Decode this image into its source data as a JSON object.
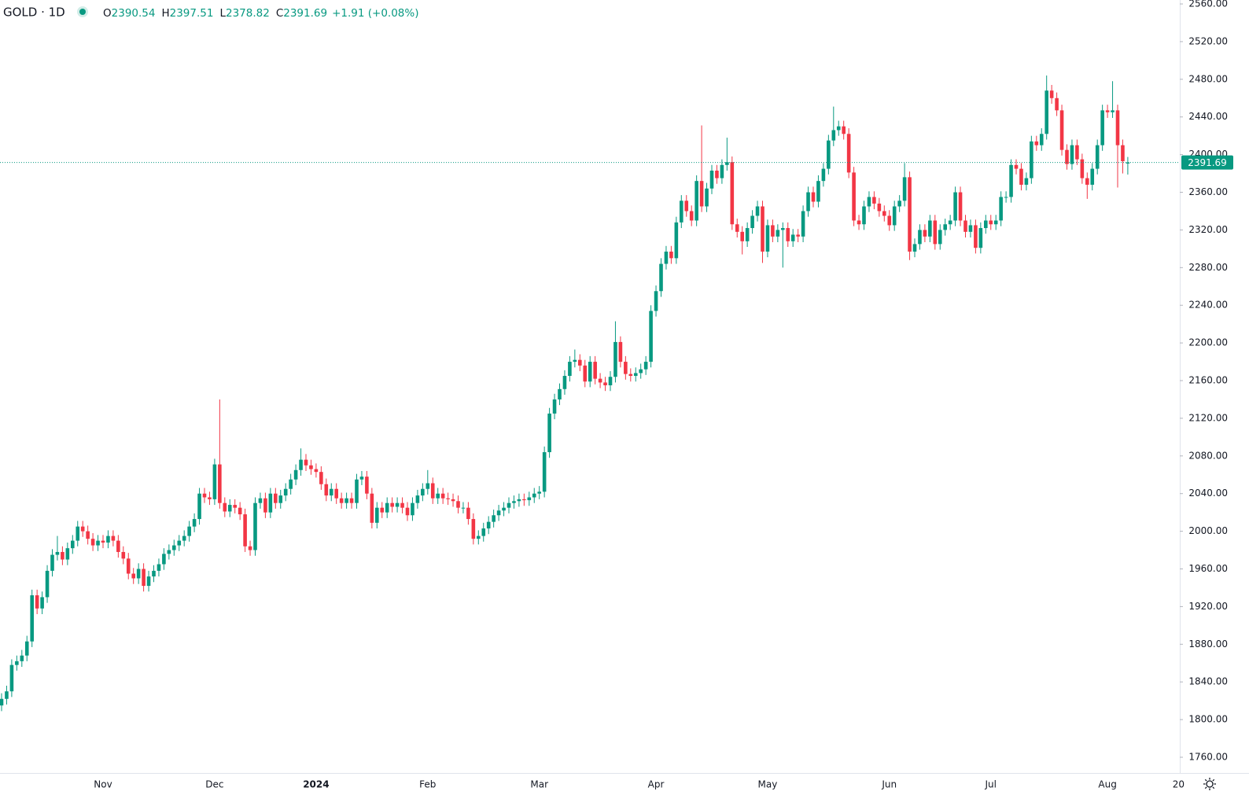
{
  "chart_data": {
    "type": "candlestick",
    "title": "GOLD · 1D",
    "ohlc_labels": [
      "O",
      "H",
      "L",
      "C"
    ],
    "change": "+1.91 (+0.08%)",
    "up_color": "#089981",
    "down_color": "#f23645",
    "last_price_line": true,
    "grid": false,
    "ylim": [
      1743.3,
      2564.2
    ],
    "yticks": [
      {
        "value": 1760,
        "label": "1760.00"
      },
      {
        "value": 1800,
        "label": "1800.00"
      },
      {
        "value": 1840,
        "label": "1840.00"
      },
      {
        "value": 1880,
        "label": "1880.00"
      },
      {
        "value": 1920,
        "label": "1920.00"
      },
      {
        "value": 1960,
        "label": "1960.00"
      },
      {
        "value": 2000,
        "label": "2000.00"
      },
      {
        "value": 2040,
        "label": "2040.00"
      },
      {
        "value": 2080,
        "label": "2080.00"
      },
      {
        "value": 2120,
        "label": "2120.00"
      },
      {
        "value": 2160,
        "label": "2160.00"
      },
      {
        "value": 2200,
        "label": "2200.00"
      },
      {
        "value": 2240,
        "label": "2240.00"
      },
      {
        "value": 2280,
        "label": "2280.00"
      },
      {
        "value": 2320,
        "label": "2320.00"
      },
      {
        "value": 2360,
        "label": "2360.00"
      },
      {
        "value": 2400,
        "label": "2400.00"
      },
      {
        "value": 2440,
        "label": "2440.00"
      },
      {
        "value": 2480,
        "label": "2480.00"
      },
      {
        "value": 2520,
        "label": "2520.00"
      },
      {
        "value": 2560,
        "label": "2560.00"
      }
    ],
    "categories": [
      null,
      null,
      null,
      null,
      null,
      null,
      null,
      null,
      null,
      null,
      null,
      null,
      null,
      null,
      null,
      null,
      null,
      null,
      null,
      null,
      "Nov",
      null,
      null,
      null,
      null,
      null,
      null,
      null,
      null,
      null,
      null,
      null,
      null,
      null,
      null,
      null,
      null,
      null,
      null,
      null,
      null,
      null,
      "Dec",
      null,
      null,
      null,
      null,
      null,
      null,
      null,
      null,
      null,
      null,
      null,
      null,
      null,
      null,
      null,
      null,
      null,
      null,
      null,
      "2024",
      null,
      null,
      null,
      null,
      null,
      null,
      null,
      null,
      null,
      null,
      null,
      null,
      null,
      null,
      null,
      null,
      null,
      null,
      null,
      null,
      null,
      "Feb",
      null,
      null,
      null,
      null,
      null,
      null,
      null,
      null,
      null,
      null,
      null,
      null,
      null,
      null,
      null,
      null,
      null,
      null,
      null,
      null,
      null,
      "Mar",
      null,
      null,
      null,
      null,
      null,
      null,
      null,
      null,
      null,
      null,
      null,
      null,
      null,
      null,
      null,
      null,
      null,
      null,
      null,
      null,
      null,
      null,
      "Apr",
      null,
      null,
      null,
      null,
      null,
      null,
      null,
      null,
      null,
      null,
      null,
      null,
      null,
      null,
      null,
      null,
      null,
      null,
      null,
      null,
      null,
      "May",
      null,
      null,
      null,
      null,
      null,
      null,
      null,
      null,
      null,
      null,
      null,
      null,
      null,
      null,
      null,
      null,
      null,
      null,
      null,
      null,
      null,
      null,
      null,
      "Jun",
      null,
      null,
      null,
      null,
      null,
      null,
      null,
      null,
      null,
      null,
      null,
      null,
      null,
      null,
      null,
      null,
      null,
      null,
      null,
      "Jul",
      null,
      null,
      null,
      null,
      null,
      null,
      null,
      null,
      null,
      null,
      null,
      null,
      null,
      null,
      null,
      null,
      null,
      null,
      null,
      null,
      null,
      null,
      "Aug",
      null,
      null,
      null,
      null,
      null,
      null,
      null,
      null,
      null,
      null,
      null,
      null,
      null,
      "20"
    ],
    "open": [
      1815,
      1822,
      1830,
      1858,
      1862,
      1868,
      1883,
      1932,
      1918,
      1930,
      1958,
      1975,
      1978,
      1970,
      1982,
      1990,
      2005,
      2000,
      1992,
      1985,
      1990,
      1988,
      1995,
      1990,
      1978,
      1971,
      1955,
      1950,
      1960,
      1942,
      1952,
      1958,
      1965,
      1976,
      1980,
      1985,
      1990,
      1995,
      2005,
      2013,
      2040,
      2036,
      2034,
      2071,
      2030,
      2021,
      2028,
      2025,
      2018,
      1984,
      1980,
      2030,
      2035,
      2020,
      2040,
      2030,
      2038,
      2045,
      2055,
      2065,
      2076,
      2070,
      2066,
      2063,
      2050,
      2038,
      2045,
      2035,
      2030,
      2035,
      2030,
      2055,
      2058,
      2040,
      2009,
      2025,
      2020,
      2030,
      2026,
      2030,
      2025,
      2017,
      2030,
      2038,
      2045,
      2051,
      2035,
      2040,
      2035,
      2034,
      2032,
      2025,
      2025,
      2013,
      1992,
      1995,
      2003,
      2010,
      2017,
      2022,
      2025,
      2030,
      2032,
      2034,
      2033,
      2036,
      2040,
      2042,
      2084,
      2125,
      2140,
      2151,
      2165,
      2180,
      2182,
      2176,
      2159,
      2180,
      2162,
      2158,
      2155,
      2164,
      2201,
      2180,
      2167,
      2165,
      2168,
      2172,
      2180,
      2234,
      2255,
      2284,
      2297,
      2290,
      2328,
      2351,
      2340,
      2330,
      2372,
      2345,
      2364,
      2383,
      2375,
      2389,
      2392,
      2326,
      2318,
      2308,
      2322,
      2335,
      2345,
      2297,
      2325,
      2313,
      2320,
      2322,
      2308,
      2315,
      2313,
      2340,
      2360,
      2350,
      2372,
      2385,
      2415,
      2426,
      2430,
      2422,
      2381,
      2330,
      2326,
      2345,
      2355,
      2348,
      2340,
      2335,
      2325,
      2345,
      2351,
      2376,
      2297,
      2305,
      2320,
      2313,
      2330,
      2305,
      2320,
      2326,
      2330,
      2360,
      2330,
      2318,
      2325,
      2301,
      2322,
      2330,
      2326,
      2330,
      2355,
      2355,
      2389,
      2385,
      2368,
      2375,
      2414,
      2410,
      2422,
      2468,
      2460,
      2447,
      2405,
      2390,
      2410,
      2395,
      2375,
      2368,
      2385,
      2410,
      2447,
      2445,
      2447,
      2410,
      2390.54,
      null,
      null,
      null,
      null,
      null,
      null,
      null,
      null,
      null,
      null
    ],
    "high": [
      1828,
      1836,
      1864,
      1868,
      1874,
      1889,
      1938,
      1938,
      1936,
      1964,
      1981,
      1995,
      1984,
      1988,
      1996,
      2011,
      2011,
      2006,
      1998,
      1996,
      1996,
      2001,
      2001,
      1996,
      1984,
      1977,
      1961,
      1966,
      1966,
      1958,
      1964,
      1971,
      1982,
      1986,
      1991,
      1996,
      2001,
      2011,
      2019,
      2046,
      2046,
      2042,
      2077,
      2140,
      2036,
      2034,
      2034,
      2031,
      2024,
      1990,
      2036,
      2041,
      2041,
      2046,
      2046,
      2044,
      2051,
      2061,
      2071,
      2088,
      2082,
      2076,
      2072,
      2069,
      2056,
      2051,
      2051,
      2041,
      2041,
      2041,
      2061,
      2064,
      2064,
      2046,
      2031,
      2031,
      2036,
      2036,
      2036,
      2036,
      2031,
      2036,
      2044,
      2051,
      2065,
      2057,
      2046,
      2046,
      2041,
      2040,
      2038,
      2031,
      2031,
      2019,
      2001,
      2009,
      2016,
      2023,
      2028,
      2031,
      2036,
      2038,
      2040,
      2040,
      2042,
      2046,
      2048,
      2090,
      2131,
      2146,
      2157,
      2171,
      2186,
      2193,
      2188,
      2182,
      2186,
      2186,
      2168,
      2164,
      2170,
      2223,
      2207,
      2186,
      2173,
      2174,
      2178,
      2186,
      2240,
      2261,
      2290,
      2303,
      2303,
      2334,
      2357,
      2357,
      2346,
      2378,
      2431,
      2370,
      2389,
      2389,
      2395,
      2418,
      2398,
      2332,
      2324,
      2328,
      2341,
      2351,
      2351,
      2331,
      2331,
      2326,
      2328,
      2328,
      2321,
      2321,
      2346,
      2366,
      2366,
      2378,
      2391,
      2421,
      2451,
      2436,
      2436,
      2428,
      2387,
      2336,
      2351,
      2361,
      2361,
      2354,
      2346,
      2341,
      2351,
      2357,
      2391,
      2382,
      2311,
      2326,
      2326,
      2336,
      2336,
      2326,
      2332,
      2336,
      2366,
      2366,
      2336,
      2331,
      2331,
      2328,
      2336,
      2336,
      2336,
      2361,
      2361,
      2395,
      2395,
      2391,
      2381,
      2420,
      2420,
      2428,
      2484,
      2474,
      2466,
      2453,
      2411,
      2416,
      2416,
      2401,
      2381,
      2391,
      2416,
      2453,
      2453,
      2478,
      2453,
      2416,
      2397.51,
      null,
      null,
      null,
      null,
      null,
      null,
      null,
      null,
      null,
      null
    ],
    "low": [
      1809,
      1816,
      1824,
      1852,
      1856,
      1862,
      1877,
      1912,
      1912,
      1924,
      1952,
      1969,
      1964,
      1964,
      1976,
      1984,
      1994,
      1986,
      1979,
      1979,
      1982,
      1982,
      1984,
      1972,
      1965,
      1949,
      1944,
      1944,
      1936,
      1936,
      1946,
      1952,
      1959,
      1970,
      1974,
      1979,
      1984,
      1989,
      1999,
      2007,
      2030,
      2028,
      2028,
      2024,
      2015,
      2015,
      2019,
      2012,
      1978,
      1974,
      1974,
      2024,
      2014,
      2014,
      2024,
      2024,
      2032,
      2039,
      2049,
      2059,
      2064,
      2060,
      2057,
      2044,
      2032,
      2032,
      2029,
      2024,
      2024,
      2024,
      2024,
      2049,
      2034,
      2003,
      2003,
      2014,
      2014,
      2020,
      2020,
      2019,
      2011,
      2011,
      2024,
      2032,
      2039,
      2029,
      2029,
      2029,
      2028,
      2026,
      2019,
      2019,
      2007,
      1986,
      1986,
      1989,
      1997,
      2004,
      2011,
      2016,
      2019,
      2024,
      2026,
      2027,
      2027,
      2030,
      2034,
      2036,
      2078,
      2119,
      2134,
      2145,
      2159,
      2174,
      2170,
      2153,
      2153,
      2156,
      2152,
      2149,
      2149,
      2158,
      2174,
      2161,
      2159,
      2159,
      2162,
      2166,
      2174,
      2228,
      2249,
      2278,
      2284,
      2284,
      2322,
      2334,
      2324,
      2324,
      2339,
      2339,
      2358,
      2369,
      2369,
      2383,
      2320,
      2312,
      2294,
      2302,
      2316,
      2329,
      2285,
      2291,
      2307,
      2307,
      2280,
      2302,
      2302,
      2307,
      2307,
      2334,
      2344,
      2344,
      2366,
      2379,
      2409,
      2420,
      2416,
      2375,
      2324,
      2320,
      2320,
      2339,
      2342,
      2334,
      2329,
      2319,
      2319,
      2339,
      2345,
      2288,
      2291,
      2299,
      2307,
      2307,
      2299,
      2299,
      2314,
      2320,
      2324,
      2324,
      2312,
      2312,
      2295,
      2295,
      2316,
      2320,
      2320,
      2324,
      2349,
      2349,
      2379,
      2362,
      2362,
      2369,
      2404,
      2404,
      2416,
      2454,
      2441,
      2399,
      2384,
      2384,
      2389,
      2369,
      2353,
      2362,
      2379,
      2404,
      2439,
      2439,
      2365,
      2380,
      2378.82,
      null,
      null,
      null,
      null,
      null,
      null,
      null,
      null,
      null,
      null
    ],
    "close": [
      1822,
      1830,
      1858,
      1862,
      1868,
      1883,
      1932,
      1918,
      1930,
      1958,
      1975,
      1978,
      1970,
      1982,
      1990,
      2005,
      2000,
      1992,
      1985,
      1990,
      1988,
      1995,
      1990,
      1978,
      1971,
      1955,
      1950,
      1960,
      1942,
      1952,
      1958,
      1965,
      1976,
      1980,
      1985,
      1990,
      1995,
      2005,
      2013,
      2040,
      2036,
      2034,
      2071,
      2030,
      2021,
      2028,
      2025,
      2018,
      1984,
      1980,
      2030,
      2035,
      2020,
      2040,
      2030,
      2038,
      2045,
      2055,
      2065,
      2076,
      2070,
      2066,
      2063,
      2050,
      2038,
      2045,
      2035,
      2030,
      2035,
      2030,
      2055,
      2058,
      2040,
      2009,
      2025,
      2020,
      2030,
      2026,
      2030,
      2025,
      2017,
      2030,
      2038,
      2045,
      2051,
      2035,
      2040,
      2035,
      2034,
      2032,
      2025,
      2025,
      2013,
      1992,
      1995,
      2003,
      2010,
      2017,
      2022,
      2025,
      2030,
      2032,
      2034,
      2033,
      2036,
      2040,
      2042,
      2084,
      2125,
      2140,
      2151,
      2165,
      2180,
      2182,
      2176,
      2159,
      2180,
      2162,
      2158,
      2155,
      2164,
      2201,
      2180,
      2167,
      2165,
      2168,
      2172,
      2180,
      2234,
      2255,
      2284,
      2297,
      2290,
      2328,
      2351,
      2340,
      2330,
      2372,
      2345,
      2364,
      2383,
      2375,
      2389,
      2392,
      2326,
      2318,
      2308,
      2322,
      2335,
      2345,
      2297,
      2325,
      2313,
      2320,
      2322,
      2308,
      2315,
      2313,
      2340,
      2360,
      2350,
      2372,
      2385,
      2415,
      2426,
      2430,
      2422,
      2381,
      2330,
      2326,
      2345,
      2355,
      2348,
      2340,
      2335,
      2325,
      2345,
      2351,
      2376,
      2297,
      2305,
      2320,
      2313,
      2330,
      2305,
      2320,
      2326,
      2330,
      2360,
      2330,
      2318,
      2325,
      2301,
      2322,
      2330,
      2326,
      2330,
      2355,
      2355,
      2389,
      2385,
      2368,
      2375,
      2414,
      2410,
      2422,
      2468,
      2460,
      2447,
      2405,
      2390,
      2410,
      2395,
      2375,
      2368,
      2385,
      2410,
      2447,
      2445,
      2447,
      2410,
      2393,
      2391.69,
      null,
      null,
      null,
      null,
      null,
      null,
      null,
      null,
      null,
      null
    ]
  }
}
